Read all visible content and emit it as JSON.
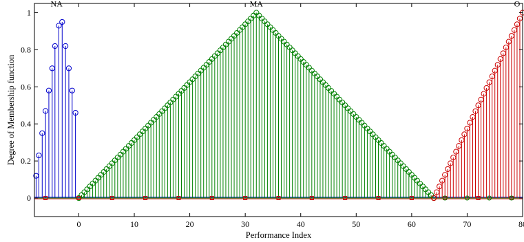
{
  "chart_data": {
    "type": "stem",
    "title": "",
    "xlabel": "Performance Index",
    "ylabel": "Degree of Membership function",
    "xlim": [
      -8,
      80
    ],
    "ylim": [
      -0.1,
      1.05
    ],
    "xticks": [
      0,
      10,
      20,
      30,
      40,
      50,
      60,
      70,
      80
    ],
    "yticks": [
      0,
      0.2,
      0.4,
      0.6,
      0.8,
      1
    ],
    "xtick_labels": [
      "0",
      "10",
      "20",
      "30",
      "40",
      "50",
      "60",
      "70",
      "80"
    ],
    "ytick_labels": [
      "0",
      "0.2",
      "0.4",
      "0.6",
      "0.8",
      "1"
    ],
    "grid": false,
    "annotations": [
      {
        "text": "NA",
        "x": -4,
        "y": 1.0
      },
      {
        "text": "MA",
        "x": 32,
        "y": 1.0
      },
      {
        "text": "O",
        "x": 80,
        "y": 1.0
      }
    ],
    "series": [
      {
        "color": "#0000cc",
        "marker": "circle",
        "x": [
          -7.7,
          -7.2,
          -6.6,
          -6.0,
          -5.4,
          -4.8,
          -4.3,
          -3.6,
          -3.0,
          -2.4,
          -1.8,
          -1.2,
          -0.6
        ],
        "y": [
          0.12,
          0.23,
          0.35,
          0.47,
          0.58,
          0.7,
          0.82,
          0.93,
          0.95,
          0.82,
          0.7,
          0.58,
          0.46
        ]
      },
      {
        "color": "#008000",
        "marker": "circle",
        "triangle": {
          "start": 0,
          "peak": 32,
          "end": 64,
          "step": 0.5
        }
      },
      {
        "color": "#cc0000",
        "marker": "circle",
        "triangle": {
          "start": 64,
          "peak": 80,
          "end": 80,
          "step": 0.5
        }
      }
    ]
  }
}
